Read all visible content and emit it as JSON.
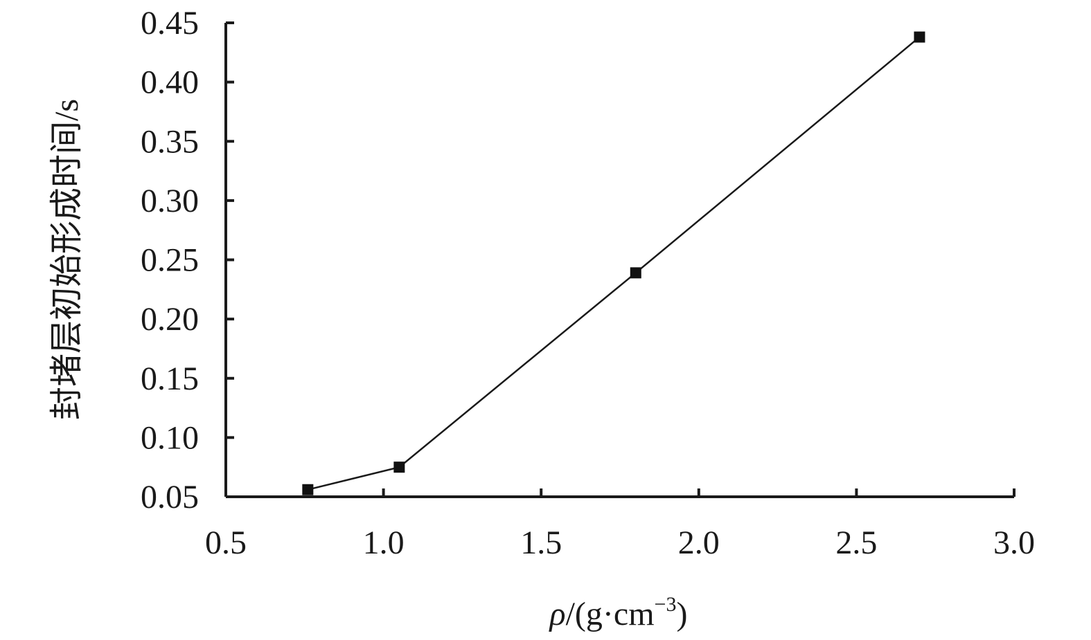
{
  "chart_data": {
    "type": "line",
    "title": "",
    "xlabel": "ρ/(g·cm⁻³)",
    "xlabel_parts": {
      "symbol": "ρ",
      "unit_prefix": "/(g·cm",
      "exponent": "−3",
      "unit_suffix": ")"
    },
    "ylabel": "封堵层初始形成时间/s",
    "xlim": [
      0.5,
      3.0
    ],
    "ylim": [
      0.05,
      0.45
    ],
    "xticks": [
      0.5,
      1.0,
      1.5,
      2.0,
      2.5,
      3.0
    ],
    "xtick_labels": [
      "0.5",
      "1.0",
      "1.5",
      "2.0",
      "2.5",
      "3.0"
    ],
    "yticks": [
      0.05,
      0.1,
      0.15,
      0.2,
      0.25,
      0.3,
      0.35,
      0.4,
      0.45
    ],
    "ytick_labels": [
      "0.05",
      "0.10",
      "0.15",
      "0.20",
      "0.25",
      "0.30",
      "0.35",
      "0.40",
      "0.45"
    ],
    "grid": false,
    "legend": "none",
    "marker": "square",
    "color": "#111111",
    "series": [
      {
        "x": [
          0.76,
          1.05,
          1.8,
          2.7
        ],
        "y": [
          0.056,
          0.075,
          0.239,
          0.438
        ]
      }
    ]
  }
}
